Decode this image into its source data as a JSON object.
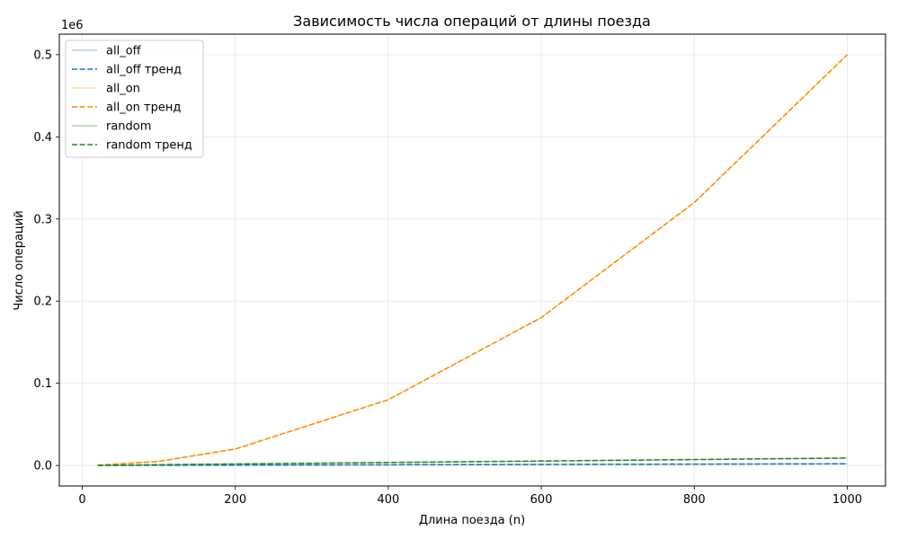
{
  "chart_data": {
    "type": "line",
    "title": "Зависимость числа операций от длины поезда",
    "xlabel": "Длина поезда (n)",
    "ylabel": "Число операций",
    "y_multiplier_label": "1e6",
    "xlim": [
      -30,
      1050
    ],
    "ylim": [
      -0.025,
      0.525
    ],
    "xticks": [
      0,
      200,
      400,
      600,
      800,
      1000
    ],
    "xtick_labels": [
      "0",
      "200",
      "400",
      "600",
      "800",
      "1000"
    ],
    "yticks": [
      0.0,
      0.1,
      0.2,
      0.3,
      0.4,
      0.5
    ],
    "ytick_labels": [
      "0.0",
      "0.1",
      "0.2",
      "0.3",
      "0.4",
      "0.5"
    ],
    "grid": true,
    "legend_position": "top-left",
    "x": [
      20,
      100,
      200,
      400,
      600,
      800,
      1000
    ],
    "series": [
      {
        "name": "all_off",
        "style": "solid-thin",
        "color": "#7a9fc8",
        "values": [
          4e-05,
          0.0002,
          0.0004,
          0.0008,
          0.0012,
          0.0016,
          0.002
        ]
      },
      {
        "name": "all_off тренд",
        "style": "dashed",
        "color": "#1f77b4",
        "values": [
          4e-05,
          0.0002,
          0.0004,
          0.0008,
          0.0012,
          0.0016,
          0.002
        ]
      },
      {
        "name": "all_on",
        "style": "solid-thin",
        "color": "#ffbf66",
        "values": [
          0.0002,
          0.005,
          0.02,
          0.08,
          0.18,
          0.32,
          0.5
        ]
      },
      {
        "name": "all_on тренд",
        "style": "dashed",
        "color": "#ff8c00",
        "values": [
          0.0002,
          0.005,
          0.02,
          0.08,
          0.18,
          0.32,
          0.5
        ]
      },
      {
        "name": "random",
        "style": "solid-thin",
        "color": "#6aa86a",
        "values": [
          0.0002,
          0.0009,
          0.0018,
          0.0036,
          0.0054,
          0.0072,
          0.009
        ]
      },
      {
        "name": "random тренд",
        "style": "dashed",
        "color": "#228b22",
        "values": [
          0.0002,
          0.0009,
          0.0018,
          0.0036,
          0.0054,
          0.0072,
          0.009
        ]
      }
    ]
  }
}
